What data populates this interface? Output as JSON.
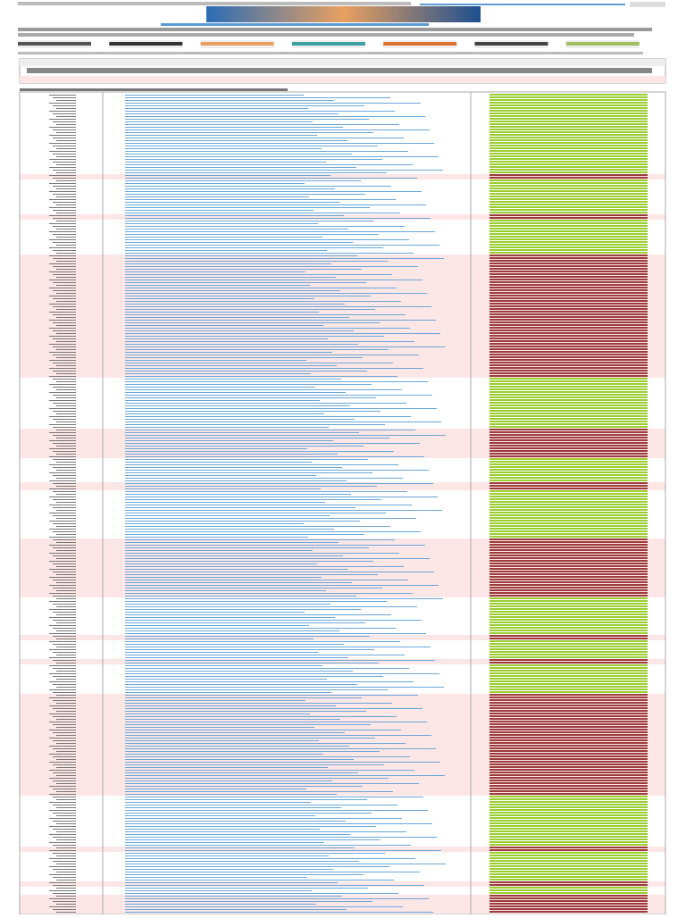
{
  "table": {
    "segments": [
      {
        "status": "ok",
        "rows": 30
      },
      {
        "status": "bad",
        "rows": 2
      },
      {
        "status": "ok",
        "rows": 13
      },
      {
        "status": "bad",
        "rows": 2
      },
      {
        "status": "ok",
        "rows": 13
      },
      {
        "status": "bad",
        "rows": 46
      },
      {
        "status": "ok",
        "rows": 19
      },
      {
        "status": "bad",
        "rows": 11
      },
      {
        "status": "ok",
        "rows": 9
      },
      {
        "status": "bad",
        "rows": 3
      },
      {
        "status": "ok",
        "rows": 18
      },
      {
        "status": "bad",
        "rows": 22
      },
      {
        "status": "ok",
        "rows": 14
      },
      {
        "status": "bad",
        "rows": 2
      },
      {
        "status": "ok",
        "rows": 7
      },
      {
        "status": "bad",
        "rows": 2
      },
      {
        "status": "ok",
        "rows": 11
      },
      {
        "status": "bad",
        "rows": 38
      },
      {
        "status": "ok",
        "rows": 19
      },
      {
        "status": "bad",
        "rows": 2
      },
      {
        "status": "ok",
        "rows": 11
      },
      {
        "status": "bad",
        "rows": 2
      },
      {
        "status": "ok",
        "rows": 3
      },
      {
        "status": "bad",
        "rows": 7
      }
    ],
    "colors": {
      "ok": "#9acd32",
      "bad": "#9b3b3b",
      "bad_row": "#fde6e6"
    }
  }
}
